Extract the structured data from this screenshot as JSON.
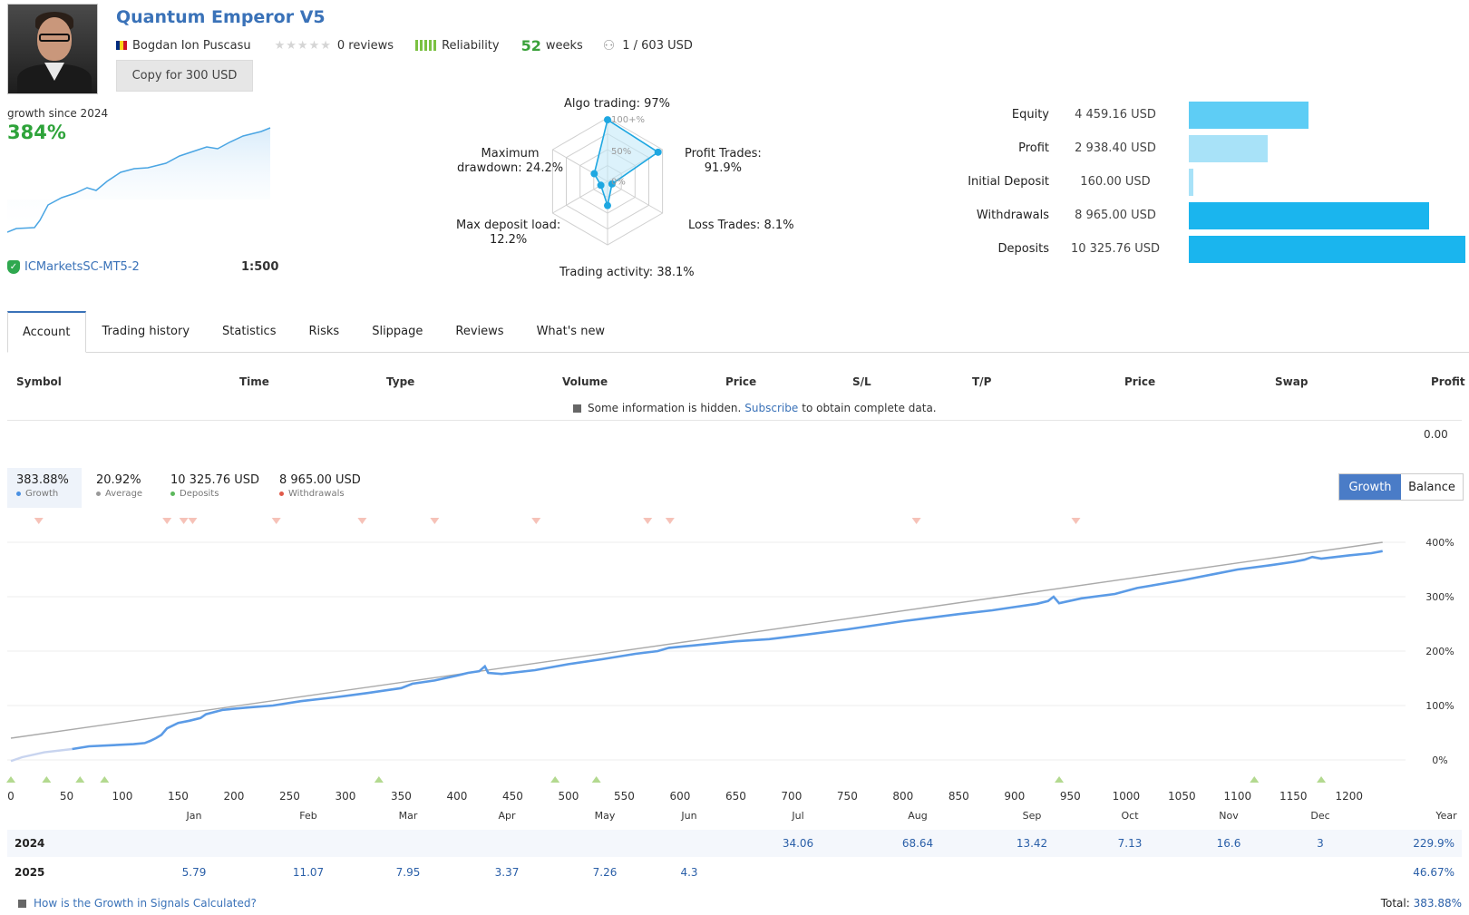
{
  "header": {
    "title": "Quantum Emperor V5",
    "author": "Bogdan Ion Puscasu",
    "reviews": "0 reviews",
    "reliability_label": "Reliability",
    "weeks_value": "52",
    "weeks_label": "weeks",
    "subscribers": "1 / 603 USD",
    "copy_button": "Copy for 300 USD",
    "stars_filled": 0,
    "stars_total": 5
  },
  "summary": {
    "growth_label": "growth since 2024",
    "growth_value": "384%",
    "broker": "ICMarketsSC-MT5-2",
    "leverage": "1:500"
  },
  "radar": {
    "labels": {
      "algo": "Algo trading: 97%",
      "profit_trades": "Profit Trades:",
      "profit_trades_val": "91.9%",
      "loss_trades": "Loss Trades: 8.1%",
      "activity": "Trading activity: 38.1%",
      "deposit_load": "Max deposit load:",
      "deposit_load_val": "12.2%",
      "drawdown": "Maximum",
      "drawdown_val": "drawdown: 24.2%"
    },
    "scale": {
      "full": "100+%",
      "half": "50%",
      "zero": "0%"
    },
    "values": {
      "algo": 97,
      "profit_trades": 91.9,
      "loss_trades": 8.1,
      "activity": 38.1,
      "deposit_load": 12.2,
      "drawdown": 24.2
    }
  },
  "balances": [
    {
      "label": "Equity",
      "value": "4 459.16 USD",
      "amount": 4459.16,
      "color": "#5ecdf5"
    },
    {
      "label": "Profit",
      "value": "2 938.40 USD",
      "amount": 2938.4,
      "color": "#a8e2f8"
    },
    {
      "label": "Initial Deposit",
      "value": "160.00 USD",
      "amount": 160.0,
      "color": "#a8e2f8"
    },
    {
      "label": "Withdrawals",
      "value": "8 965.00 USD",
      "amount": 8965.0,
      "color": "#1ab5ee"
    },
    {
      "label": "Deposits",
      "value": "10 325.76 USD",
      "amount": 10325.76,
      "color": "#1ab5ee"
    }
  ],
  "tabs": [
    "Account",
    "Trading history",
    "Statistics",
    "Risks",
    "Slippage",
    "Reviews",
    "What's new"
  ],
  "table": {
    "headers": [
      "Symbol",
      "Time",
      "Type",
      "Volume",
      "Price",
      "S/L",
      "T/P",
      "Price",
      "Swap",
      "Profit"
    ],
    "hidden_pre": "Some information is hidden.",
    "hidden_link": "Subscribe",
    "hidden_post": "to obtain complete data.",
    "profit_total": "0.00"
  },
  "stats": {
    "growth": {
      "value": "383.88%",
      "label": "Growth",
      "color": "#4a90e2"
    },
    "average": {
      "value": "20.92%",
      "label": "Average",
      "color": "#999999"
    },
    "deposits": {
      "value": "10 325.76 USD",
      "label": "Deposits",
      "color": "#5cb85c"
    },
    "withdrawals": {
      "value": "8 965.00 USD",
      "label": "Withdrawals",
      "color": "#e05a4a"
    }
  },
  "toggle": {
    "growth": "Growth",
    "balance": "Balance"
  },
  "chart_data": {
    "type": "line",
    "title": "",
    "xlabel": "",
    "ylabel": "",
    "x_ticks": [
      "0",
      "50",
      "100",
      "150",
      "200",
      "250",
      "300",
      "350",
      "400",
      "450",
      "500",
      "550",
      "600",
      "650",
      "700",
      "750",
      "800",
      "850",
      "900",
      "950",
      "1000",
      "1050",
      "1100",
      "1150",
      "1200"
    ],
    "y_ticks": [
      "400%",
      "300%",
      "200%",
      "100%",
      "0%"
    ],
    "xlim": [
      0,
      1240
    ],
    "ylim": [
      -5,
      400
    ],
    "series": [
      {
        "name": "Growth",
        "x": [
          0,
          10,
          30,
          55,
          70,
          90,
          110,
          120,
          125,
          130,
          135,
          140,
          150,
          160,
          170,
          175,
          190,
          210,
          235,
          260,
          290,
          320,
          350,
          360,
          380,
          400,
          410,
          420,
          425,
          428,
          440,
          470,
          500,
          530,
          560,
          580,
          590,
          600,
          620,
          650,
          680,
          700,
          750,
          800,
          850,
          880,
          900,
          920,
          930,
          935,
          940,
          960,
          990,
          1010,
          1050,
          1080,
          1100,
          1130,
          1150,
          1160,
          1167,
          1175,
          1200,
          1220,
          1230
        ],
        "y": [
          -2,
          5,
          14,
          20,
          25,
          27,
          29,
          31,
          35,
          40,
          46,
          58,
          68,
          72,
          77,
          84,
          92,
          96,
          100,
          108,
          115,
          123,
          132,
          140,
          146,
          155,
          160,
          163,
          172,
          160,
          158,
          165,
          176,
          185,
          195,
          200,
          206,
          208,
          212,
          218,
          222,
          227,
          240,
          255,
          268,
          275,
          281,
          287,
          292,
          300,
          288,
          297,
          305,
          316,
          330,
          342,
          350,
          358,
          364,
          368,
          373,
          370,
          376,
          380,
          383.88
        ]
      },
      {
        "name": "Average",
        "x": [
          0,
          1230
        ],
        "y": [
          40,
          400
        ]
      }
    ],
    "withdrawal_markers_x": [
      25,
      140,
      155,
      163,
      238,
      315,
      380,
      471,
      571,
      591,
      812,
      955
    ],
    "deposit_markers_x": [
      0,
      32,
      62,
      84,
      330,
      488,
      525,
      940,
      1115,
      1175
    ]
  },
  "months": [
    "Jan",
    "Feb",
    "Mar",
    "Apr",
    "May",
    "Jun",
    "Jul",
    "Aug",
    "Sep",
    "Oct",
    "Nov",
    "Dec",
    "Year"
  ],
  "years": [
    {
      "year": "2024",
      "values": [
        "",
        "",
        "",
        "",
        "",
        "",
        "34.06",
        "68.64",
        "13.42",
        "7.13",
        "16.6",
        "3"
      ],
      "total": "229.9%"
    },
    {
      "year": "2025",
      "values": [
        "5.79",
        "11.07",
        "7.95",
        "3.37",
        "7.26",
        "4.3",
        "",
        "",
        "",
        "",
        "",
        ""
      ],
      "total": "46.67%"
    }
  ],
  "footer": {
    "link": "How is the Growth in Signals Calculated?",
    "total_label": "Total:",
    "total_value": "383.88%"
  }
}
